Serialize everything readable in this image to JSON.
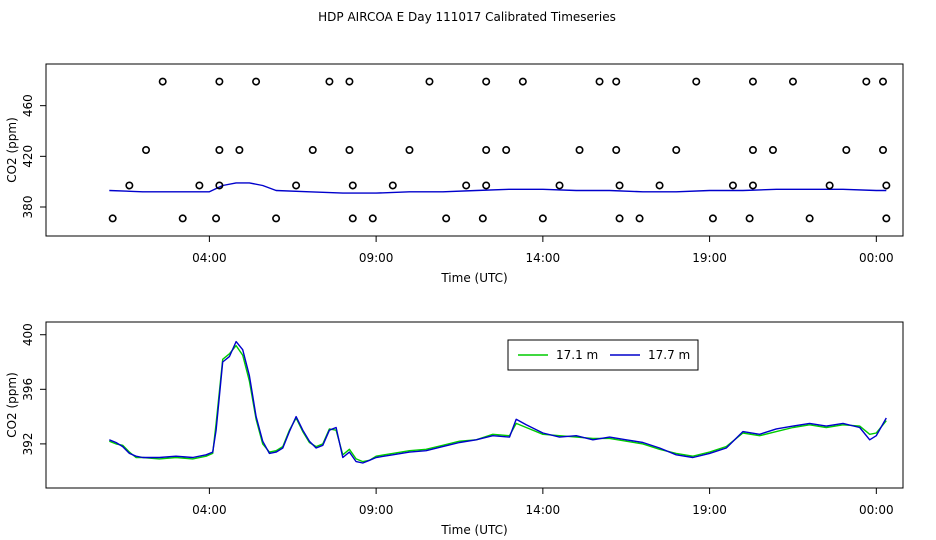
{
  "title": "HDP AIRCOA E  Day 111017  Calibrated Timeseries",
  "colors": {
    "green": "#00cc00",
    "blue": "#0000cc",
    "axis": "#000000"
  },
  "chart_data": [
    {
      "type": "scatter",
      "xlabel": "Time (UTC)",
      "ylabel": "CO2 (ppm)",
      "xlim": [
        0,
        24.5
      ],
      "ylim": [
        365,
        485
      ],
      "xticks": [
        {
          "value": 4,
          "label": "04:00"
        },
        {
          "value": 9,
          "label": "09:00"
        },
        {
          "value": 14,
          "label": "14:00"
        },
        {
          "value": 19,
          "label": "19:00"
        },
        {
          "value": 24,
          "label": "00:00"
        }
      ],
      "yticks": [
        {
          "value": 380,
          "label": "380"
        },
        {
          "value": 420,
          "label": "420"
        },
        {
          "value": 460,
          "label": "460"
        }
      ],
      "points": [
        [
          1.1,
          371
        ],
        [
          1.6,
          397
        ],
        [
          2.1,
          425
        ],
        [
          2.6,
          479
        ],
        [
          3.2,
          371
        ],
        [
          3.7,
          397
        ],
        [
          4.2,
          371
        ],
        [
          4.3,
          397
        ],
        [
          4.3,
          425
        ],
        [
          4.3,
          479
        ],
        [
          4.9,
          425
        ],
        [
          5.4,
          479
        ],
        [
          6.0,
          371
        ],
        [
          6.6,
          397
        ],
        [
          7.1,
          425
        ],
        [
          7.6,
          479
        ],
        [
          8.2,
          479
        ],
        [
          8.2,
          425
        ],
        [
          8.3,
          397
        ],
        [
          8.3,
          371
        ],
        [
          8.9,
          371
        ],
        [
          9.5,
          397
        ],
        [
          10.0,
          425
        ],
        [
          10.6,
          479
        ],
        [
          11.1,
          371
        ],
        [
          11.7,
          397
        ],
        [
          12.2,
          371
        ],
        [
          12.3,
          397
        ],
        [
          12.3,
          425
        ],
        [
          12.3,
          479
        ],
        [
          12.9,
          425
        ],
        [
          13.4,
          479
        ],
        [
          14.0,
          371
        ],
        [
          14.5,
          397
        ],
        [
          15.1,
          425
        ],
        [
          15.7,
          479
        ],
        [
          16.2,
          479
        ],
        [
          16.2,
          425
        ],
        [
          16.3,
          397
        ],
        [
          16.3,
          371
        ],
        [
          16.9,
          371
        ],
        [
          17.5,
          397
        ],
        [
          18.0,
          425
        ],
        [
          18.6,
          479
        ],
        [
          19.1,
          371
        ],
        [
          19.7,
          397
        ],
        [
          20.2,
          371
        ],
        [
          20.3,
          397
        ],
        [
          20.3,
          425
        ],
        [
          20.3,
          479
        ],
        [
          20.9,
          425
        ],
        [
          21.5,
          479
        ],
        [
          22.0,
          371
        ],
        [
          22.6,
          397
        ],
        [
          23.1,
          425
        ],
        [
          23.7,
          479
        ],
        [
          24.2,
          479
        ],
        [
          24.2,
          425
        ],
        [
          24.3,
          397
        ],
        [
          24.3,
          371
        ]
      ],
      "series": [
        {
          "color": "#0000cc",
          "x": [
            1.0,
            2.0,
            3.0,
            4.0,
            4.4,
            4.8,
            5.2,
            5.6,
            6.0,
            7.0,
            8.0,
            9.0,
            10.0,
            11.0,
            12.0,
            13.0,
            14.0,
            15.0,
            16.0,
            17.0,
            18.0,
            19.0,
            20.0,
            21.0,
            22.0,
            23.0,
            24.0,
            24.3
          ],
          "y": [
            393,
            392,
            392,
            392,
            397,
            399,
            399,
            397,
            393,
            392,
            391,
            391,
            392,
            392,
            393,
            394,
            394,
            393,
            393,
            392,
            392,
            393,
            393,
            394,
            394,
            394,
            393,
            393
          ]
        }
      ]
    },
    {
      "type": "line",
      "xlabel": "Time (UTC)",
      "ylabel": "CO2 (ppm)",
      "xlim": [
        0,
        24.5
      ],
      "ylim": [
        389.5,
        400.2
      ],
      "xticks": [
        {
          "value": 4,
          "label": "04:00"
        },
        {
          "value": 9,
          "label": "09:00"
        },
        {
          "value": 14,
          "label": "14:00"
        },
        {
          "value": 19,
          "label": "19:00"
        },
        {
          "value": 24,
          "label": "00:00"
        }
      ],
      "yticks": [
        {
          "value": 392,
          "label": "392"
        },
        {
          "value": 396,
          "label": "396"
        },
        {
          "value": 400,
          "label": "400"
        }
      ],
      "legend": {
        "placement": "top-right"
      },
      "series": [
        {
          "name": "17.1 m",
          "color": "#00cc00",
          "x": [
            1.0,
            1.2,
            1.4,
            1.6,
            1.8,
            2.0,
            2.5,
            3.0,
            3.5,
            3.9,
            4.1,
            4.2,
            4.4,
            4.6,
            4.8,
            5.0,
            5.2,
            5.4,
            5.6,
            5.8,
            6.0,
            6.2,
            6.4,
            6.6,
            6.8,
            7.0,
            7.2,
            7.4,
            7.6,
            7.8,
            8.0,
            8.2,
            8.4,
            8.6,
            8.8,
            9.0,
            9.5,
            10.0,
            10.5,
            11.0,
            11.5,
            12.0,
            12.5,
            13.0,
            13.2,
            13.5,
            14.0,
            14.5,
            15.0,
            15.5,
            16.0,
            16.5,
            17.0,
            17.5,
            18.0,
            18.5,
            19.0,
            19.5,
            20.0,
            20.5,
            21.0,
            21.5,
            22.0,
            22.5,
            23.0,
            23.5,
            23.8,
            24.0,
            24.3
          ],
          "y": [
            392.2,
            392.0,
            391.9,
            391.4,
            391.0,
            391.0,
            390.9,
            391.0,
            390.9,
            391.1,
            391.3,
            393.5,
            398.2,
            398.6,
            399.2,
            398.5,
            396.6,
            393.8,
            392.0,
            391.4,
            391.5,
            391.8,
            393.0,
            393.9,
            392.9,
            392.1,
            391.8,
            392.0,
            393.1,
            393.0,
            391.2,
            391.6,
            390.9,
            390.7,
            390.8,
            391.1,
            391.3,
            391.5,
            391.6,
            391.9,
            392.2,
            392.3,
            392.7,
            392.6,
            393.5,
            393.2,
            392.7,
            392.6,
            392.5,
            392.4,
            392.4,
            392.2,
            392.0,
            391.6,
            391.3,
            391.1,
            391.4,
            391.8,
            392.8,
            392.6,
            392.9,
            393.2,
            393.4,
            393.2,
            393.4,
            393.3,
            392.7,
            392.8,
            393.7
          ]
        },
        {
          "name": "17.7 m",
          "color": "#0000cc",
          "x": [
            1.0,
            1.2,
            1.4,
            1.6,
            1.8,
            2.0,
            2.5,
            3.0,
            3.5,
            3.9,
            4.1,
            4.2,
            4.4,
            4.6,
            4.8,
            5.0,
            5.2,
            5.4,
            5.6,
            5.8,
            6.0,
            6.2,
            6.4,
            6.6,
            6.8,
            7.0,
            7.2,
            7.4,
            7.6,
            7.8,
            8.0,
            8.2,
            8.4,
            8.6,
            8.8,
            9.0,
            9.5,
            10.0,
            10.5,
            11.0,
            11.5,
            12.0,
            12.5,
            13.0,
            13.2,
            13.5,
            14.0,
            14.5,
            15.0,
            15.5,
            16.0,
            16.5,
            17.0,
            17.5,
            18.0,
            18.5,
            19.0,
            19.5,
            20.0,
            20.5,
            21.0,
            21.5,
            22.0,
            22.5,
            23.0,
            23.5,
            23.8,
            24.0,
            24.3
          ],
          "y": [
            392.3,
            392.1,
            391.8,
            391.3,
            391.1,
            391.0,
            391.0,
            391.1,
            391.0,
            391.2,
            391.4,
            393.0,
            398.0,
            398.4,
            399.5,
            398.9,
            397.0,
            394.0,
            392.2,
            391.3,
            391.4,
            391.7,
            392.9,
            394.0,
            393.0,
            392.2,
            391.7,
            391.9,
            393.0,
            393.2,
            391.0,
            391.4,
            390.7,
            390.6,
            390.8,
            391.0,
            391.2,
            391.4,
            391.5,
            391.8,
            392.1,
            392.3,
            392.6,
            392.5,
            393.8,
            393.4,
            392.8,
            392.5,
            392.6,
            392.3,
            392.5,
            392.3,
            392.1,
            391.7,
            391.2,
            391.0,
            391.3,
            391.7,
            392.9,
            392.7,
            393.1,
            393.3,
            393.5,
            393.3,
            393.5,
            393.2,
            392.3,
            392.6,
            393.9
          ]
        }
      ]
    }
  ]
}
